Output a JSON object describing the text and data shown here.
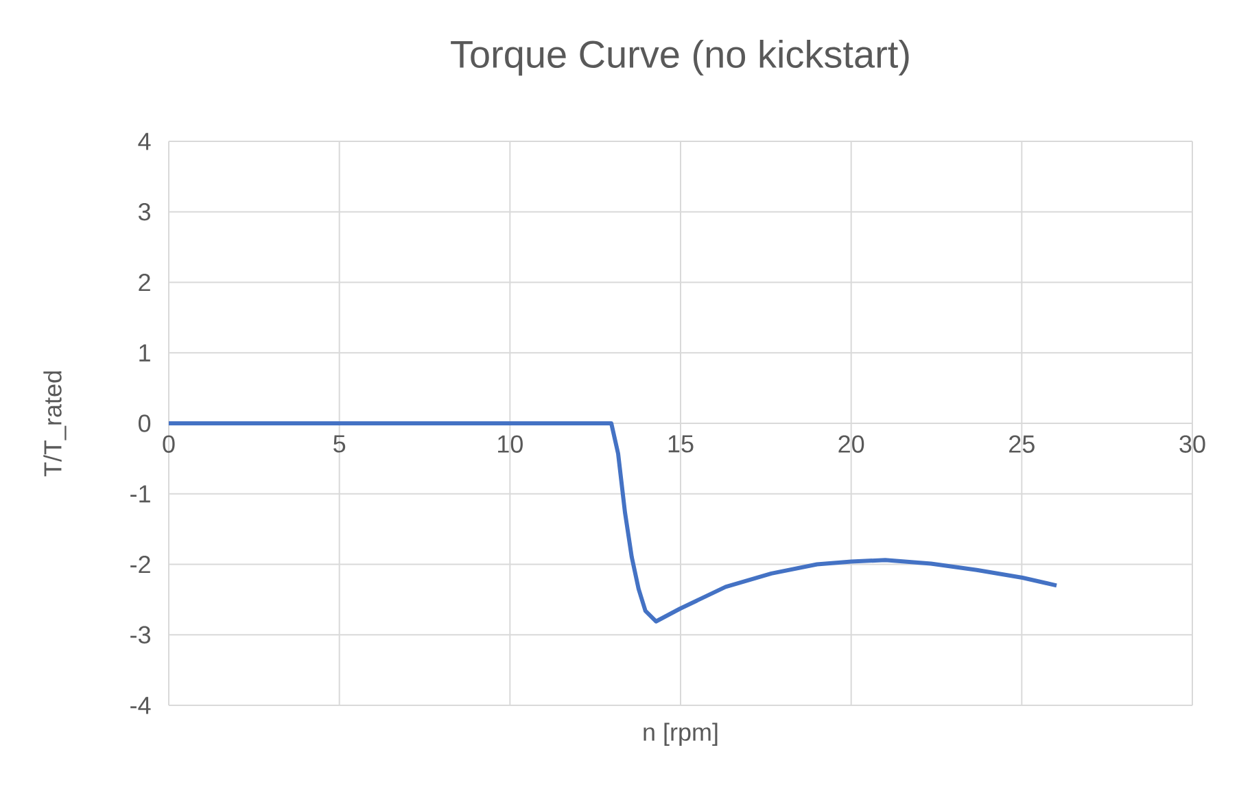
{
  "chart_data": {
    "type": "line",
    "title": "Torque Curve (no kickstart)",
    "xlabel": "n [rpm]",
    "ylabel": "T/T_rated",
    "x": [
      0,
      12.97,
      13.17,
      13.37,
      13.57,
      13.77,
      13.97,
      14.28,
      14.98,
      16.32,
      17.66,
      19.0,
      20.0,
      21.0,
      22.34,
      23.68,
      25.02,
      26.02
    ],
    "values": [
      0,
      0,
      -0.43,
      -1.26,
      -1.9,
      -2.35,
      -2.66,
      -2.81,
      -2.63,
      -2.32,
      -2.13,
      -2.0,
      -1.96,
      -1.94,
      -1.99,
      -2.08,
      -2.19,
      -2.3
    ],
    "color": "#4472c4",
    "xlim": [
      0,
      30
    ],
    "xticks": [
      0,
      5,
      10,
      15,
      20,
      25,
      30
    ],
    "ylim": [
      -4,
      4
    ],
    "yticks": [
      -4,
      -3,
      -2,
      -1,
      0,
      1,
      2,
      3,
      4
    ],
    "grid": true,
    "line_style": "solid"
  }
}
